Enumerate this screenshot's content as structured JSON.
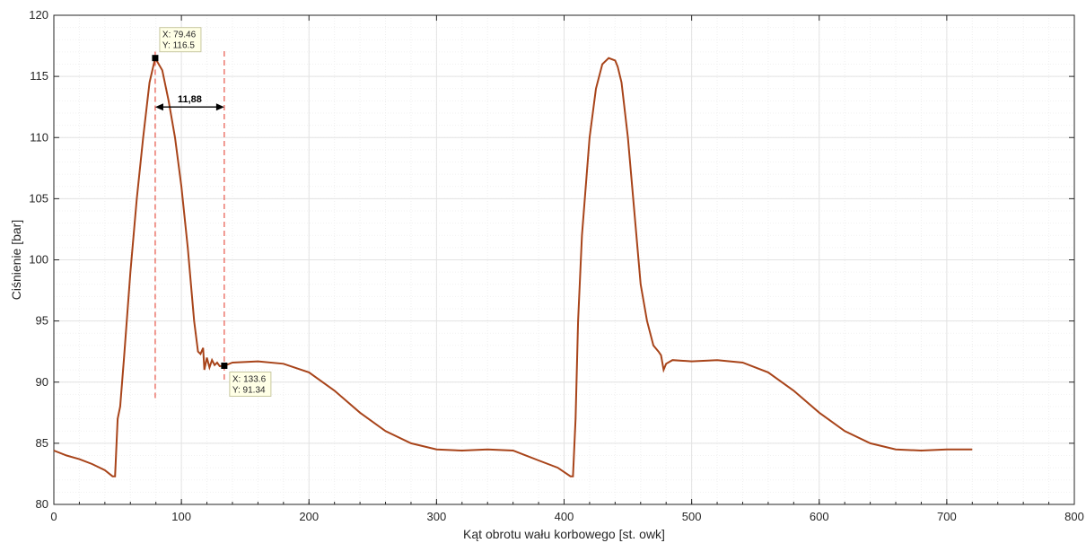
{
  "colors": {
    "series": "#a8441a",
    "marker_line": "#e8564a",
    "grid": "#e3e3e3",
    "axis": "#262626",
    "tip_bg": "#ffffe6",
    "tip_border": "#c8c8a0"
  },
  "chart_data": {
    "type": "line",
    "title": "",
    "xlabel": "Kąt obrotu wału korbowego [st. owk]",
    "ylabel": "Ciśnienie [bar]",
    "xlim": [
      0,
      800
    ],
    "ylim": [
      80,
      120
    ],
    "xticks": [
      0,
      100,
      200,
      300,
      400,
      500,
      600,
      700,
      800
    ],
    "yticks": [
      80,
      85,
      90,
      95,
      100,
      105,
      110,
      115,
      120
    ],
    "xtick_labels": [
      "0",
      "100",
      "200",
      "300",
      "400",
      "500",
      "600",
      "700",
      "800"
    ],
    "ytick_labels": [
      "80",
      "85",
      "90",
      "95",
      "100",
      "105",
      "110",
      "115",
      "120"
    ],
    "grid": true,
    "minor_grid": true,
    "series": [
      {
        "x": [
          0,
          10,
          20,
          30,
          40,
          46,
          48,
          50,
          52,
          55,
          60,
          65,
          70,
          75,
          79.46,
          85,
          90,
          95,
          100,
          105,
          110,
          113,
          115,
          117,
          118,
          120,
          122,
          124,
          126,
          128,
          130,
          133.6,
          140,
          160,
          180,
          200,
          220,
          240,
          260,
          280,
          300,
          320,
          340,
          360,
          380,
          395,
          405,
          407,
          409,
          411,
          414,
          420,
          425,
          430,
          435,
          440,
          442,
          445,
          450,
          455,
          460,
          465,
          470,
          474,
          476,
          478,
          480,
          485,
          500,
          520,
          540,
          560,
          580,
          600,
          620,
          640,
          660,
          680,
          700,
          720
        ],
        "y": [
          84.4,
          84.0,
          83.7,
          83.3,
          82.8,
          82.3,
          82.3,
          87.0,
          88.0,
          92.0,
          99.0,
          105.0,
          110.0,
          114.5,
          116.5,
          115.5,
          113.0,
          110.0,
          106.0,
          101.0,
          95.0,
          92.5,
          92.3,
          92.8,
          91.0,
          92.0,
          91.2,
          91.8,
          91.4,
          91.6,
          91.3,
          91.34,
          91.6,
          91.7,
          91.5,
          90.8,
          89.3,
          87.5,
          86.0,
          85.0,
          84.5,
          84.4,
          84.5,
          84.4,
          83.6,
          83.0,
          82.3,
          82.3,
          87.0,
          95.0,
          102.0,
          110.0,
          114.0,
          116.0,
          116.5,
          116.3,
          115.8,
          114.5,
          110.0,
          104.0,
          98.0,
          95.0,
          93.0,
          92.5,
          92.2,
          91.0,
          91.5,
          91.8,
          91.7,
          91.8,
          91.6,
          90.8,
          89.3,
          87.5,
          86.0,
          85.0,
          84.5,
          84.4,
          84.5,
          84.5
        ]
      }
    ],
    "datatips": [
      {
        "x": 79.46,
        "y": 116.5,
        "label_x": "X: 79.46",
        "label_y": "Y: 116.5"
      },
      {
        "x": 133.6,
        "y": 91.34,
        "label_x": "X: 133.6",
        "label_y": "Y: 91.34"
      }
    ],
    "vertical_markers": [
      {
        "x": 79.46,
        "y_from": 88.7,
        "y_to": 117.3
      },
      {
        "x": 133.6,
        "y_from": 90.2,
        "y_to": 117.2
      }
    ],
    "dimension": {
      "x1": 79.46,
      "x2": 133.6,
      "y": 112.5,
      "label": "11,88"
    }
  }
}
